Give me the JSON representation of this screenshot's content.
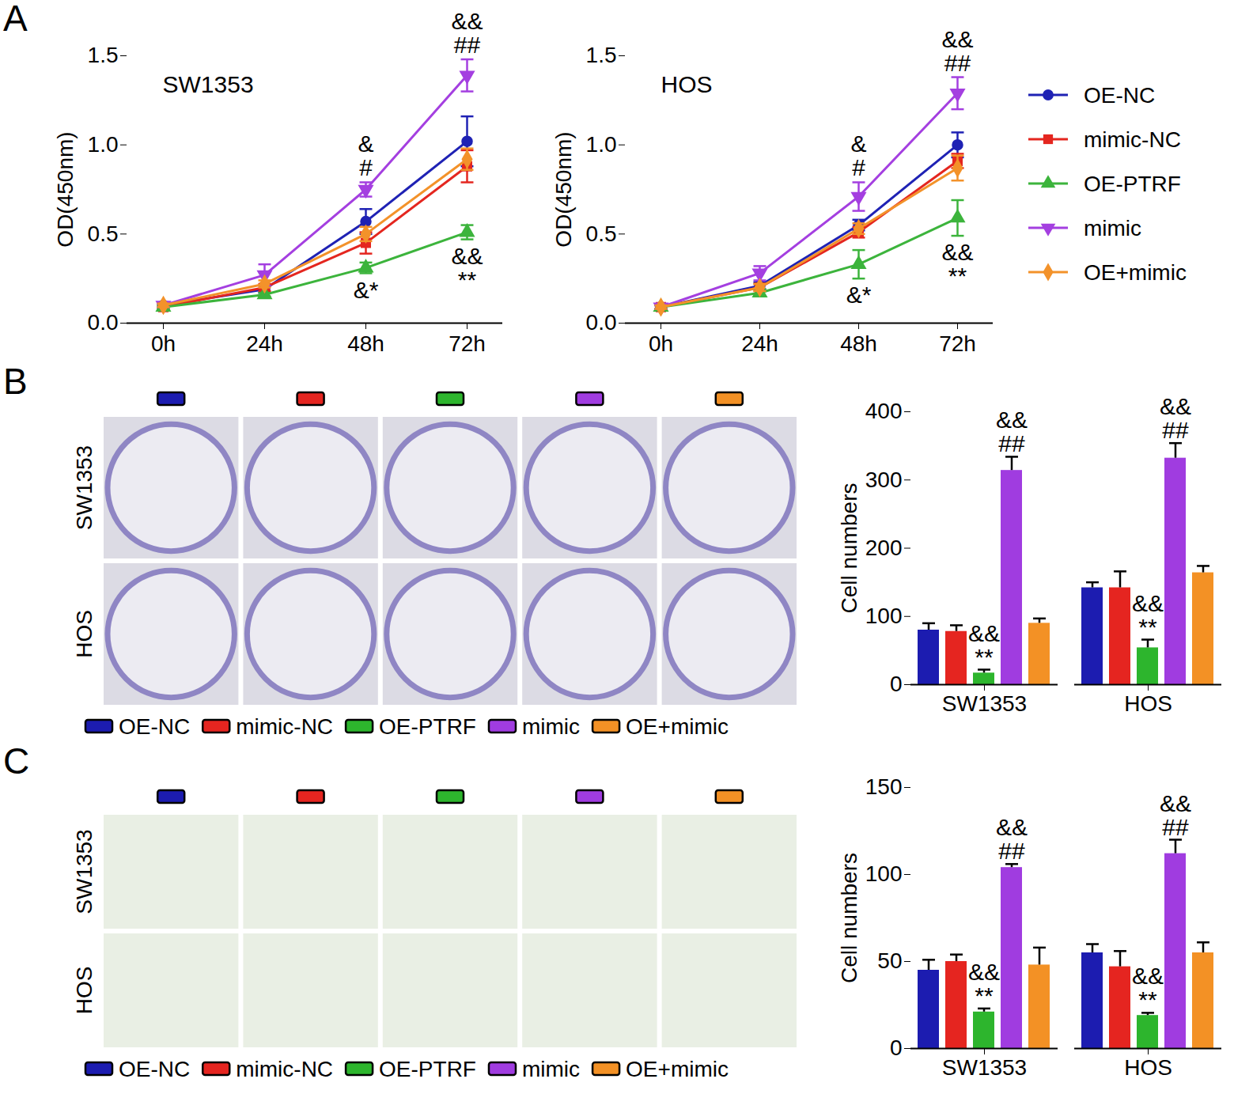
{
  "panel_labels": [
    "A",
    "B",
    "C"
  ],
  "chart_data": [
    {
      "type": "line",
      "title": "SW1353",
      "ylabel": "OD(450nm)",
      "categories": [
        "0h",
        "24h",
        "48h",
        "72h"
      ],
      "ylim": [
        0,
        1.5
      ],
      "yticks": [
        {
          "value": 0,
          "label": "0.0"
        },
        {
          "value": 0.5,
          "label": "0.5"
        },
        {
          "value": 1,
          "label": "1.0"
        },
        {
          "value": 1.5,
          "label": "1.5"
        }
      ],
      "series": [
        {
          "name": "OE-NC",
          "color": "#1f22b4",
          "marker": "circle",
          "values": [
            0.1,
            0.19,
            0.57,
            1.02
          ],
          "errors": [
            0.01,
            0.02,
            0.07,
            0.14
          ]
        },
        {
          "name": "mimic-NC",
          "color": "#e4261f",
          "marker": "square",
          "values": [
            0.09,
            0.2,
            0.45,
            0.88
          ],
          "errors": [
            0.01,
            0.02,
            0.06,
            0.09
          ]
        },
        {
          "name": "OE-PTRF",
          "color": "#3cb43c",
          "marker": "triangle",
          "values": [
            0.09,
            0.16,
            0.31,
            0.51
          ],
          "errors": [
            0.01,
            0.01,
            0.03,
            0.04
          ]
        },
        {
          "name": "mimic",
          "color": "#a43fe0",
          "marker": "triangle-down",
          "values": [
            0.1,
            0.27,
            0.75,
            1.39
          ],
          "errors": [
            0.01,
            0.06,
            0.04,
            0.09
          ]
        },
        {
          "name": "OE+mimic",
          "color": "#f3922a",
          "marker": "diamond",
          "values": [
            0.1,
            0.22,
            0.5,
            0.92
          ],
          "errors": [
            0.01,
            0.02,
            0.04,
            0.06
          ]
        }
      ],
      "annotations": [
        {
          "category": "48h",
          "series": "mimic",
          "position": "above",
          "lines": [
            "&",
            "#"
          ]
        },
        {
          "category": "72h",
          "series": "mimic",
          "position": "above",
          "lines": [
            "&&",
            "##"
          ]
        },
        {
          "category": "48h",
          "series": "OE-PTRF",
          "position": "below",
          "lines": [
            "&*"
          ]
        },
        {
          "category": "72h",
          "series": "OE-PTRF",
          "position": "below",
          "lines": [
            "&&",
            "**"
          ]
        }
      ]
    },
    {
      "type": "line",
      "title": "HOS",
      "ylabel": "OD(450nm)",
      "legend": "right",
      "categories": [
        "0h",
        "24h",
        "48h",
        "72h"
      ],
      "ylim": [
        0,
        1.5
      ],
      "yticks": [
        {
          "value": 0,
          "label": "0.0"
        },
        {
          "value": 0.5,
          "label": "0.5"
        },
        {
          "value": 1,
          "label": "1.0"
        },
        {
          "value": 1.5,
          "label": "1.5"
        }
      ],
      "series": [
        {
          "name": "OE-NC",
          "color": "#1f22b4",
          "marker": "circle",
          "values": [
            0.09,
            0.21,
            0.55,
            1.0
          ],
          "errors": [
            0.01,
            0.02,
            0.03,
            0.07
          ]
        },
        {
          "name": "mimic-NC",
          "color": "#e4261f",
          "marker": "square",
          "values": [
            0.09,
            0.2,
            0.51,
            0.91
          ],
          "errors": [
            0.01,
            0.02,
            0.03,
            0.04
          ]
        },
        {
          "name": "OE-PTRF",
          "color": "#3cb43c",
          "marker": "triangle",
          "values": [
            0.09,
            0.17,
            0.33,
            0.59
          ],
          "errors": [
            0.01,
            0.02,
            0.08,
            0.1
          ]
        },
        {
          "name": "mimic",
          "color": "#a43fe0",
          "marker": "triangle-down",
          "values": [
            0.09,
            0.28,
            0.71,
            1.29
          ],
          "errors": [
            0.01,
            0.04,
            0.08,
            0.09
          ]
        },
        {
          "name": "OE+mimic",
          "color": "#f3922a",
          "marker": "diamond",
          "values": [
            0.09,
            0.2,
            0.53,
            0.87
          ],
          "errors": [
            0.01,
            0.02,
            0.03,
            0.07
          ]
        }
      ],
      "annotations": [
        {
          "category": "48h",
          "series": "mimic",
          "position": "above",
          "lines": [
            "&",
            "#"
          ]
        },
        {
          "category": "72h",
          "series": "mimic",
          "position": "above",
          "lines": [
            "&&",
            "##"
          ]
        },
        {
          "category": "48h",
          "series": "OE-PTRF",
          "position": "below",
          "lines": [
            "&*"
          ]
        },
        {
          "category": "72h",
          "series": "OE-PTRF",
          "position": "below",
          "lines": [
            "&&",
            "**"
          ]
        }
      ]
    },
    {
      "type": "bar",
      "ylabel": "Cell numbers",
      "legend": "bottom",
      "categories": [
        "SW1353",
        "HOS"
      ],
      "ylim": [
        0,
        400
      ],
      "yticks": [
        0,
        100,
        200,
        300,
        400
      ],
      "series": [
        {
          "name": "OE-NC",
          "color": "#1c1cb0",
          "values": [
            80,
            142
          ],
          "errors": [
            10,
            8
          ]
        },
        {
          "name": "mimic-NC",
          "color": "#e52520",
          "values": [
            78,
            142
          ],
          "errors": [
            9,
            24
          ]
        },
        {
          "name": "OE-PTRF",
          "color": "#2db52d",
          "values": [
            17,
            54
          ],
          "errors": [
            5,
            12
          ]
        },
        {
          "name": "mimic",
          "color": "#a03ce0",
          "values": [
            314,
            332
          ],
          "errors": [
            20,
            22
          ]
        },
        {
          "name": "OE+mimic",
          "color": "#f39125",
          "values": [
            90,
            164
          ],
          "errors": [
            7,
            10
          ]
        }
      ],
      "annotations": [
        {
          "category": "SW1353",
          "series": "OE-PTRF",
          "position": "above",
          "lines": [
            "&&",
            "**"
          ]
        },
        {
          "category": "SW1353",
          "series": "mimic",
          "position": "above",
          "lines": [
            "&&",
            "##"
          ]
        },
        {
          "category": "HOS",
          "series": "OE-PTRF",
          "position": "above",
          "lines": [
            "&&",
            "**"
          ]
        },
        {
          "category": "HOS",
          "series": "mimic",
          "position": "above",
          "lines": [
            "&&",
            "##"
          ]
        }
      ]
    },
    {
      "type": "bar",
      "ylabel": "Cell numbers",
      "legend": "bottom",
      "categories": [
        "SW1353",
        "HOS"
      ],
      "ylim": [
        0,
        150
      ],
      "yticks": [
        0,
        50,
        100,
        150
      ],
      "series": [
        {
          "name": "OE-NC",
          "color": "#1c1cb0",
          "values": [
            45,
            55
          ],
          "errors": [
            6,
            5
          ]
        },
        {
          "name": "mimic-NC",
          "color": "#e52520",
          "values": [
            50,
            47
          ],
          "errors": [
            4,
            9
          ]
        },
        {
          "name": "OE-PTRF",
          "color": "#2db52d",
          "values": [
            21,
            19
          ],
          "errors": [
            2,
            1.5
          ]
        },
        {
          "name": "mimic",
          "color": "#a03ce0",
          "values": [
            104,
            112
          ],
          "errors": [
            2,
            8
          ]
        },
        {
          "name": "OE+mimic",
          "color": "#f39125",
          "values": [
            48,
            55
          ],
          "errors": [
            10,
            6
          ]
        }
      ],
      "annotations": [
        {
          "category": "SW1353",
          "series": "OE-PTRF",
          "position": "above",
          "lines": [
            "&&",
            "**"
          ]
        },
        {
          "category": "SW1353",
          "series": "mimic",
          "position": "above",
          "lines": [
            "&&",
            "##"
          ]
        },
        {
          "category": "HOS",
          "series": "OE-PTRF",
          "position": "above",
          "lines": [
            "&&",
            "**"
          ]
        },
        {
          "category": "HOS",
          "series": "mimic",
          "position": "above",
          "lines": [
            "&&",
            "##"
          ]
        }
      ]
    }
  ],
  "image_panels": [
    {
      "row_labels": [
        "SW1353",
        "HOS"
      ]
    },
    {
      "row_labels": [
        "SW1353",
        "HOS"
      ]
    }
  ]
}
